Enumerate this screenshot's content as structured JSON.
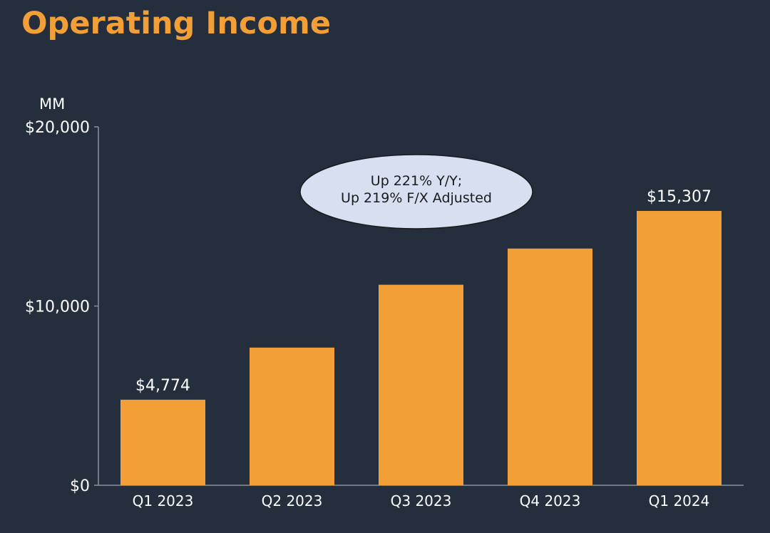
{
  "title": "Operating Income",
  "colors": {
    "background": "#252e3d",
    "bar": "#f29f38",
    "title": "#f29f38",
    "axis": "#8a909a",
    "text": "#ffffff",
    "callout_fill": "#d7dff0"
  },
  "chart_data": {
    "type": "bar",
    "title": "Operating Income",
    "unit_label": "MM",
    "categories": [
      "Q1 2023",
      "Q2 2023",
      "Q3 2023",
      "Q4 2023",
      "Q1 2024"
    ],
    "values": [
      4774,
      7681,
      11188,
      13209,
      15307
    ],
    "data_labels": [
      "$4,774",
      "",
      "",
      "",
      "$15,307"
    ],
    "ylim": [
      0,
      20000
    ],
    "yticks": [
      0,
      10000,
      20000
    ],
    "ytick_labels": [
      "$0",
      "$10,000",
      "$20,000"
    ],
    "grid": false,
    "legend": "none",
    "annotation": {
      "lines": [
        "Up 221% Y/Y;",
        "Up 219% F/X Adjusted"
      ]
    }
  }
}
